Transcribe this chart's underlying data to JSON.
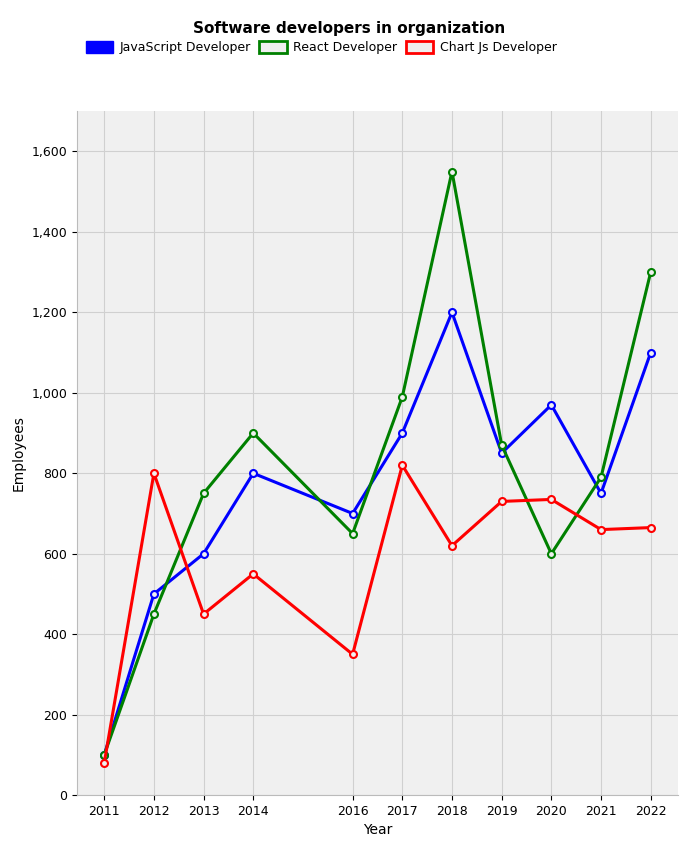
{
  "title": "Software developers in organization",
  "xlabel": "Year",
  "ylabel": "Employees",
  "years": [
    2011,
    2012,
    2013,
    2014,
    2016,
    2017,
    2018,
    2019,
    2020,
    2021,
    2022
  ],
  "javascript": [
    100,
    500,
    600,
    800,
    700,
    900,
    1200,
    850,
    970,
    750,
    1100
  ],
  "react": [
    100,
    450,
    750,
    900,
    650,
    990,
    1550,
    870,
    600,
    790,
    1300
  ],
  "chartjs": [
    80,
    800,
    450,
    550,
    350,
    820,
    620,
    730,
    735,
    660,
    665
  ],
  "js_color": "#0000FF",
  "react_color": "#008000",
  "chartjs_color": "#FF0000",
  "legend_labels": [
    "JavaScript Developer",
    "React Developer",
    "Chart Js Developer"
  ],
  "ylim": [
    0,
    1700
  ],
  "yticks": [
    0,
    200,
    400,
    600,
    800,
    1000,
    1200,
    1400,
    1600
  ],
  "bg_color": "#ffffff",
  "plot_bg_color": "#f0f0f0",
  "grid_color": "#d0d0d0",
  "marker": "o",
  "markersize": 5,
  "linewidth": 2.2,
  "title_fontsize": 11,
  "label_fontsize": 10,
  "tick_fontsize": 9
}
